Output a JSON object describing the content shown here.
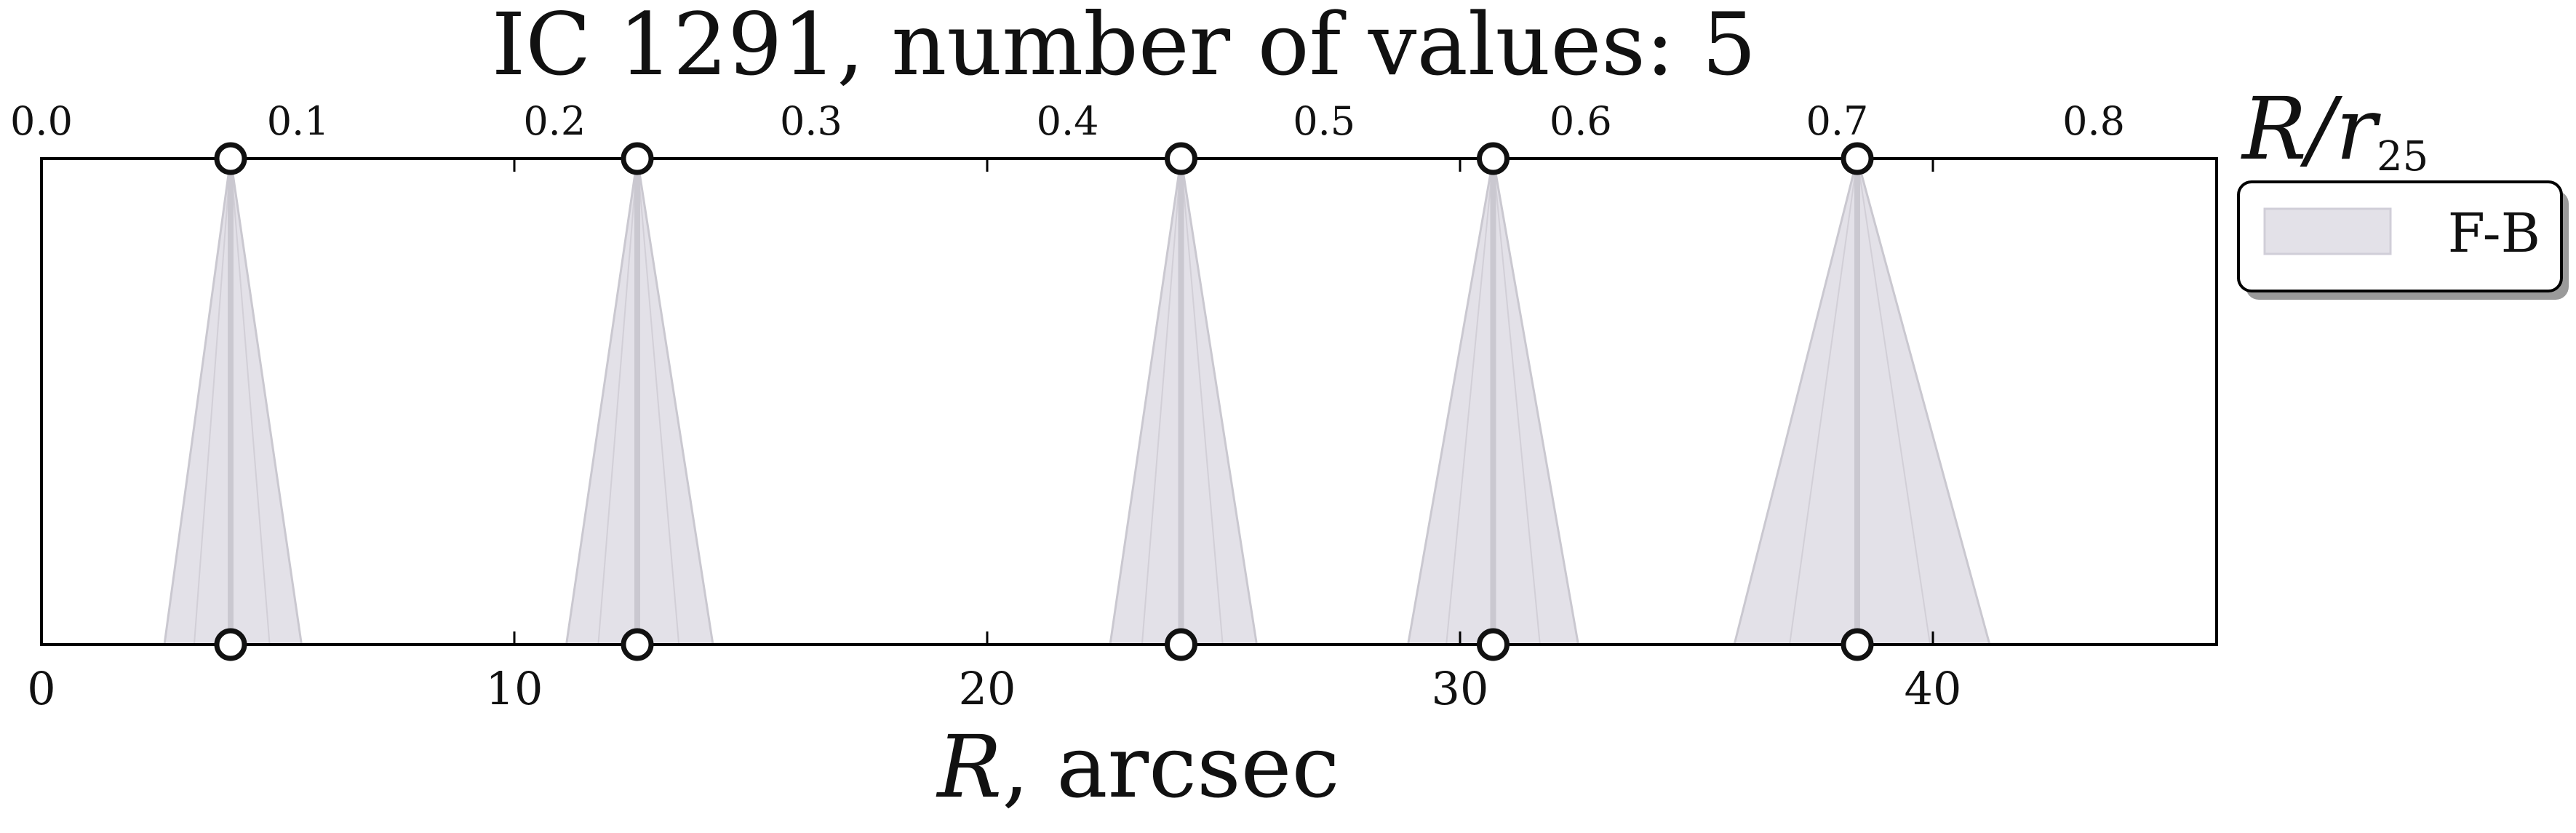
{
  "chart_data": {
    "type": "area",
    "title": "IC 1291, number of values: 5",
    "xlabel_symbol": "R",
    "xlabel_unit": ", arcsec",
    "top_axis_label": "R/r",
    "top_axis_label_subscript": "25",
    "xlim": [
      0,
      46
    ],
    "top_xlim": [
      0,
      0.8479
    ],
    "x_ticks": [
      0,
      10,
      20,
      30,
      40
    ],
    "x_tick_labels": [
      "0",
      "10",
      "20",
      "30",
      "40"
    ],
    "top_ticks": [
      0.0,
      0.1,
      0.2,
      0.3,
      0.4,
      0.5,
      0.6,
      0.7,
      0.8
    ],
    "top_tick_labels": [
      "0.0",
      "0.1",
      "0.2",
      "0.3",
      "0.4",
      "0.5",
      "0.6",
      "0.7",
      "0.8"
    ],
    "yticks_visible": false,
    "grid": false,
    "legend": {
      "placement": "outside-right-top",
      "entries": [
        {
          "label": "F-B",
          "color": "#e3e1e8"
        }
      ]
    },
    "series": [
      {
        "name": "F-B",
        "color": "#e3e1e8",
        "line_color": "#cac8d0",
        "points": [
          {
            "x": 4.0,
            "x_lo": 2.6,
            "x_hi": 5.5
          },
          {
            "x": 12.6,
            "x_lo": 11.1,
            "x_hi": 14.2
          },
          {
            "x": 24.1,
            "x_lo": 22.6,
            "x_hi": 25.7
          },
          {
            "x": 30.7,
            "x_lo": 28.9,
            "x_hi": 32.5
          },
          {
            "x": 38.4,
            "x_lo": 35.8,
            "x_hi": 41.2
          }
        ]
      }
    ]
  }
}
